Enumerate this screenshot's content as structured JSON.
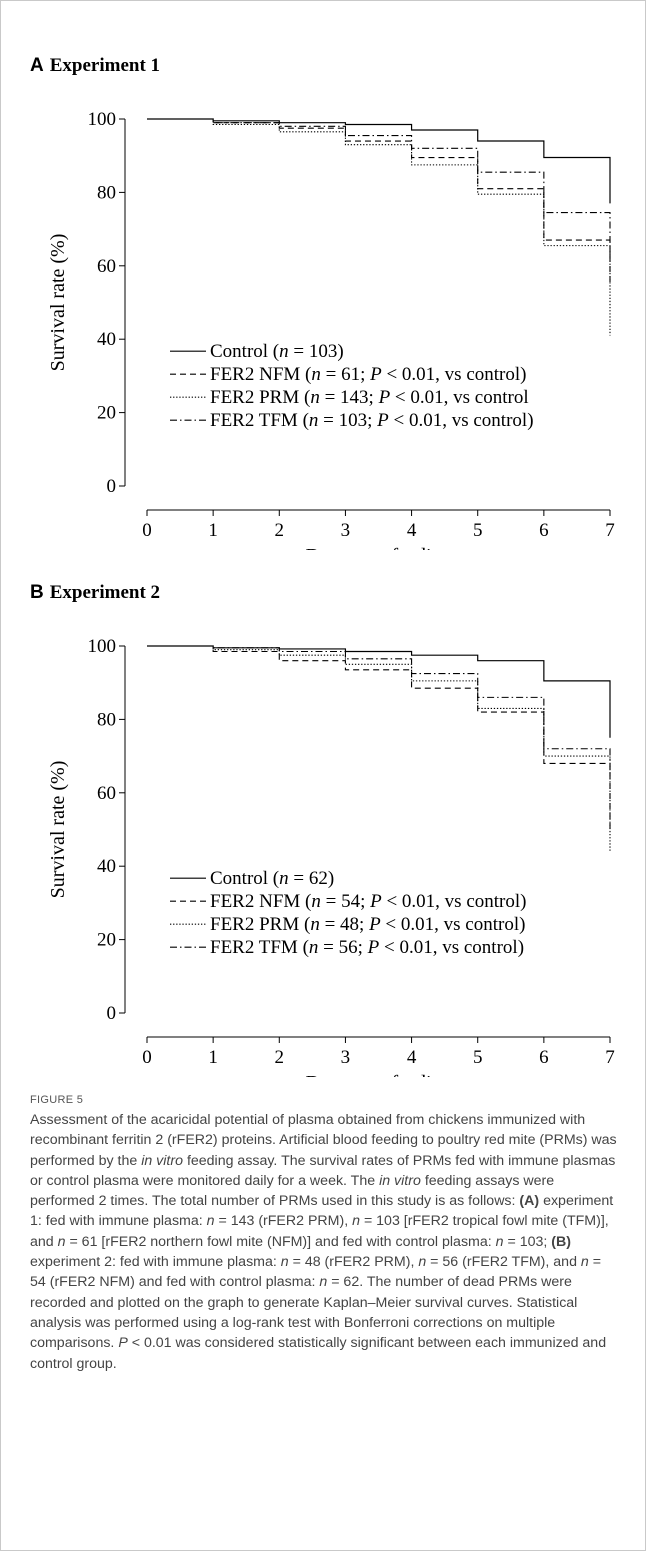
{
  "figure": {
    "label": "FIGURE 5",
    "caption_parts": [
      {
        "t": "Assessment of the acaricidal potential of plasma obtained from chickens immunized with recombinant ferritin 2 (rFER2) proteins. Artificial blood feeding to poultry red mite (PRMs) was performed by the "
      },
      {
        "t": "in vitro",
        "s": "i"
      },
      {
        "t": " feeding assay. The survival rates of PRMs fed with immune plasmas or control plasma were monitored daily for a week. The "
      },
      {
        "t": "in vitro",
        "s": "i"
      },
      {
        "t": " feeding assays were performed 2 times. The total number of PRMs used in this study is as follows: "
      },
      {
        "t": "(A)",
        "s": "b"
      },
      {
        "t": " experiment 1: fed with immune plasma: "
      },
      {
        "t": "n",
        "s": "i"
      },
      {
        "t": " = 143 (rFER2 PRM), "
      },
      {
        "t": "n",
        "s": "i"
      },
      {
        "t": " = 103 [rFER2 tropical fowl mite (TFM)], and "
      },
      {
        "t": "n",
        "s": "i"
      },
      {
        "t": " = 61 [rFER2 northern fowl mite (NFM)] and fed with control plasma: "
      },
      {
        "t": "n",
        "s": "i"
      },
      {
        "t": " = 103; "
      },
      {
        "t": "(B)",
        "s": "b"
      },
      {
        "t": " experiment 2: fed with immune plasma: "
      },
      {
        "t": "n",
        "s": "i"
      },
      {
        "t": " = 48 (rFER2 PRM), "
      },
      {
        "t": "n",
        "s": "i"
      },
      {
        "t": " = 56 (rFER2 TFM), and "
      },
      {
        "t": "n",
        "s": "i"
      },
      {
        "t": " = 54 (rFER2 NFM) and fed with control plasma: "
      },
      {
        "t": "n",
        "s": "i"
      },
      {
        "t": " = 62. The number of dead PRMs were recorded and plotted on the graph to generate Kaplan–Meier survival curves. Statistical analysis was performed using a log-rank test with Bonferroni corrections on multiple comparisons. "
      },
      {
        "t": "P",
        "s": "i"
      },
      {
        "t": " < 0.01 was considered statistically significant between each immunized and control group."
      }
    ]
  },
  "chart_data": [
    {
      "type": "line",
      "panel_letter": "A",
      "title": "Experiment 1",
      "xlabel": "Days post-feeding",
      "ylabel": "Survival rate (%)",
      "xlim": [
        0,
        7
      ],
      "ylim": [
        0,
        100
      ],
      "xticks": [
        0,
        1,
        2,
        3,
        4,
        5,
        6,
        7
      ],
      "yticks": [
        0,
        20,
        40,
        60,
        80,
        100
      ],
      "step": true,
      "legend_position": "bottom-left",
      "series": [
        {
          "name": "Control",
          "legend": [
            {
              "t": "Control ("
            },
            {
              "t": "n",
              "i": true
            },
            {
              "t": " = 103)"
            }
          ],
          "style": "solid",
          "x": [
            0,
            1,
            2,
            3,
            4,
            5,
            6,
            7
          ],
          "y": [
            100,
            99.5,
            99,
            98.5,
            97,
            94,
            89.5,
            77
          ]
        },
        {
          "name": "FER2 NFM",
          "legend": [
            {
              "t": "FER2 NFM ("
            },
            {
              "t": "n",
              "i": true
            },
            {
              "t": " = 61; "
            },
            {
              "t": "P",
              "i": true
            },
            {
              "t": " < 0.01, vs control)"
            }
          ],
          "style": "dashed",
          "x": [
            0,
            1,
            2,
            3,
            4,
            5,
            6,
            7
          ],
          "y": [
            100,
            99,
            97.5,
            94,
            89.5,
            81,
            67,
            55
          ]
        },
        {
          "name": "FER2 PRM",
          "legend": [
            {
              "t": "FER2 PRM ("
            },
            {
              "t": "n",
              "i": true
            },
            {
              "t": " = 143; "
            },
            {
              "t": "P",
              "i": true
            },
            {
              "t": " < 0.01, vs control"
            }
          ],
          "style": "dotted",
          "x": [
            0,
            1,
            2,
            3,
            4,
            5,
            6,
            7
          ],
          "y": [
            100,
            98.5,
            96.5,
            93,
            87.5,
            79.5,
            65.5,
            41
          ]
        },
        {
          "name": "FER2 TFM",
          "legend": [
            {
              "t": "FER2 TFM ("
            },
            {
              "t": "n",
              "i": true
            },
            {
              "t": " = 103; "
            },
            {
              "t": "P",
              "i": true
            },
            {
              "t": " < 0.01, vs control)"
            }
          ],
          "style": "dashdot",
          "x": [
            0,
            1,
            2,
            3,
            4,
            5,
            6,
            7
          ],
          "y": [
            100,
            99,
            98,
            95.5,
            92,
            85.5,
            74.5,
            62
          ]
        }
      ]
    },
    {
      "type": "line",
      "panel_letter": "B",
      "title": "Experiment 2",
      "xlabel": "Days post-feeding",
      "ylabel": "Survival rate (%)",
      "xlim": [
        0,
        7
      ],
      "ylim": [
        0,
        100
      ],
      "xticks": [
        0,
        1,
        2,
        3,
        4,
        5,
        6,
        7
      ],
      "yticks": [
        0,
        20,
        40,
        60,
        80,
        100
      ],
      "step": true,
      "legend_position": "bottom-left",
      "series": [
        {
          "name": "Control",
          "legend": [
            {
              "t": "Control ("
            },
            {
              "t": "n",
              "i": true
            },
            {
              "t": " = 62)"
            }
          ],
          "style": "solid",
          "x": [
            0,
            1,
            2,
            3,
            4,
            5,
            6,
            7
          ],
          "y": [
            100,
            99.5,
            99.2,
            98.5,
            97.5,
            96,
            90.5,
            75
          ]
        },
        {
          "name": "FER2 NFM",
          "legend": [
            {
              "t": "FER2 NFM ("
            },
            {
              "t": "n",
              "i": true
            },
            {
              "t": " = 54; "
            },
            {
              "t": "P",
              "i": true
            },
            {
              "t": " < 0.01, vs control)"
            }
          ],
          "style": "dashed",
          "x": [
            0,
            1,
            2,
            3,
            4,
            5,
            6,
            7
          ],
          "y": [
            100,
            98.5,
            96,
            93.5,
            88.5,
            82,
            68,
            50
          ]
        },
        {
          "name": "FER2 PRM",
          "legend": [
            {
              "t": "FER2 PRM ("
            },
            {
              "t": "n",
              "i": true
            },
            {
              "t": " = 48; "
            },
            {
              "t": "P",
              "i": true
            },
            {
              "t": " < 0.01, vs control)"
            }
          ],
          "style": "dotted",
          "x": [
            0,
            1,
            2,
            3,
            4,
            5,
            6,
            7
          ],
          "y": [
            100,
            99,
            97.5,
            95,
            90.5,
            83,
            70,
            44
          ]
        },
        {
          "name": "FER2 TFM",
          "legend": [
            {
              "t": "FER2 TFM ("
            },
            {
              "t": "n",
              "i": true
            },
            {
              "t": " = 56; "
            },
            {
              "t": "P",
              "i": true
            },
            {
              "t": " < 0.01, vs control)"
            }
          ],
          "style": "dashdot",
          "x": [
            0,
            1,
            2,
            3,
            4,
            5,
            6,
            7
          ],
          "y": [
            100,
            99.5,
            98.5,
            96.5,
            92.5,
            86,
            72,
            65
          ]
        }
      ]
    }
  ]
}
